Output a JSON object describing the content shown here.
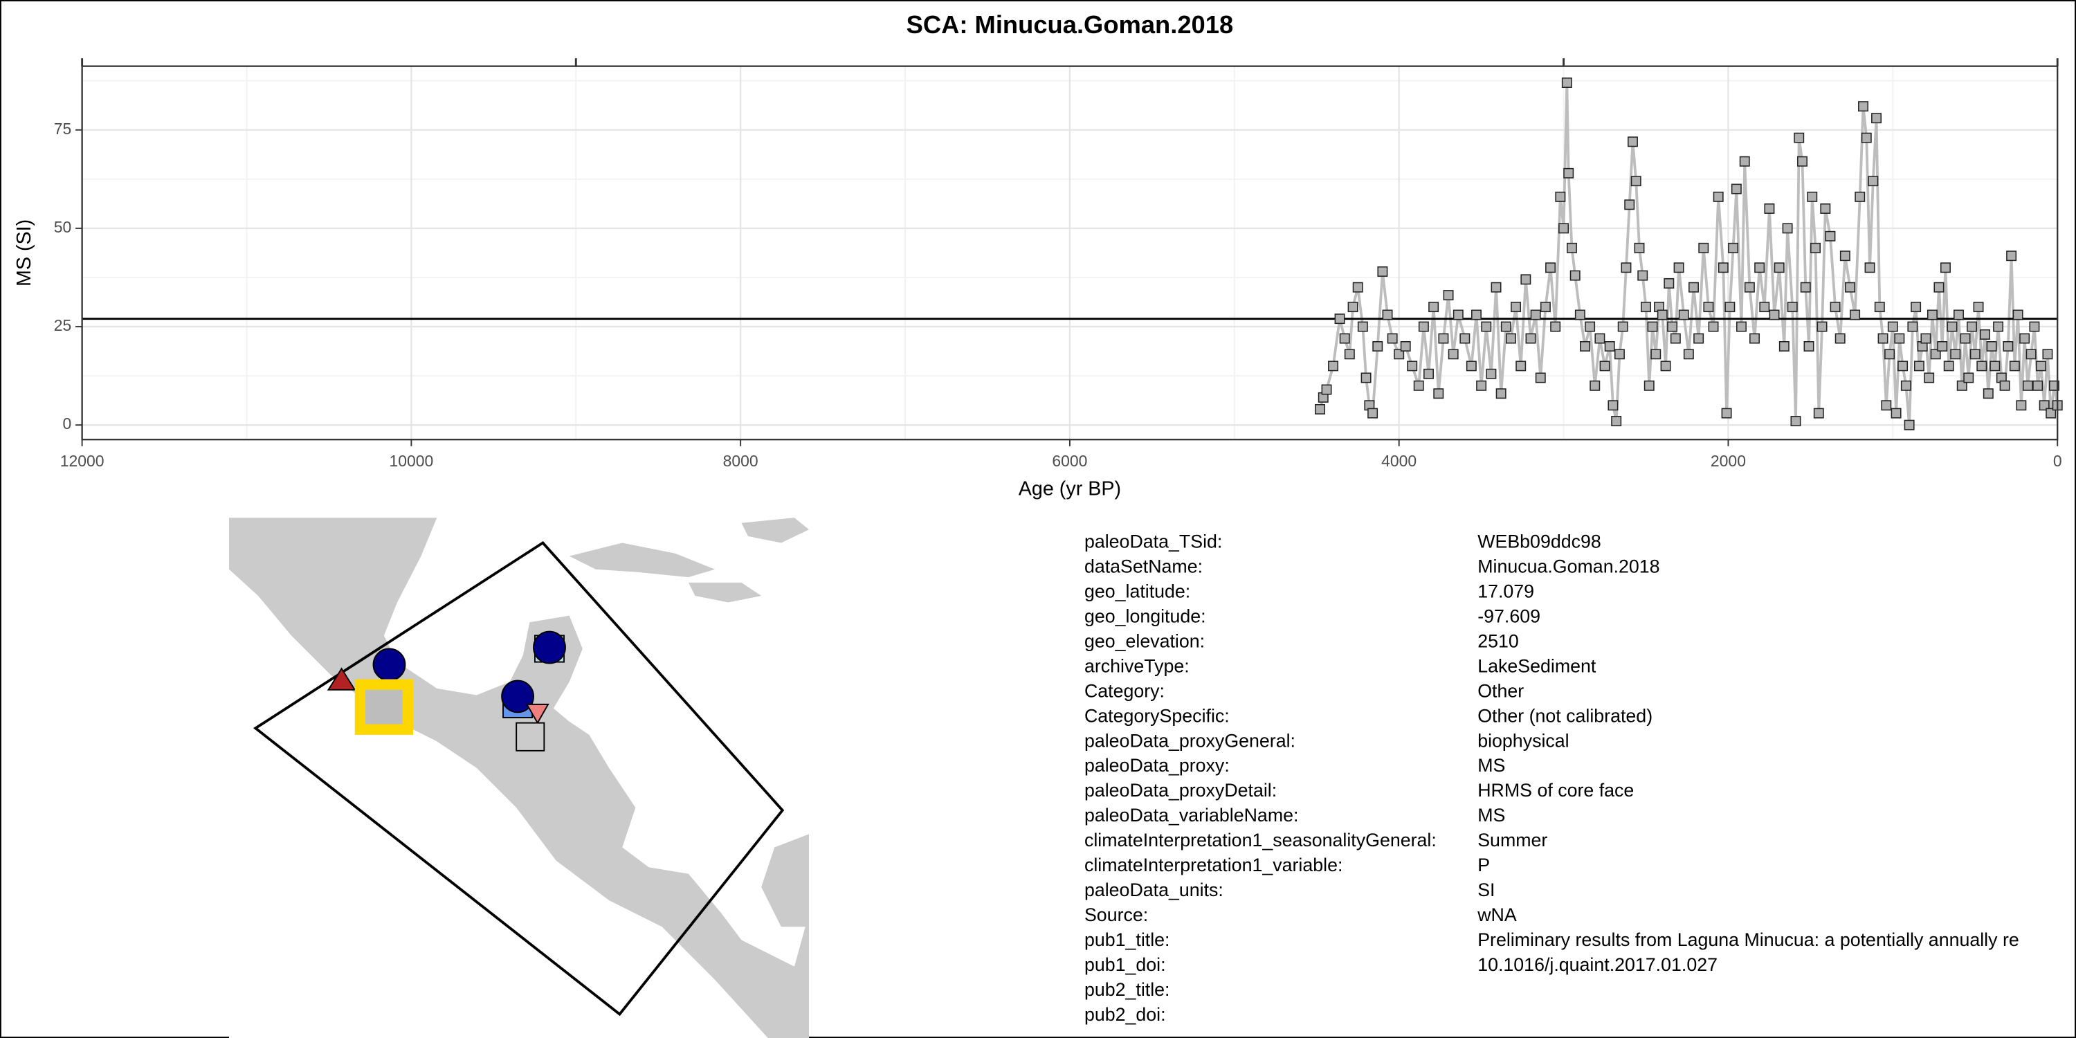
{
  "chart_data": {
    "type": "line",
    "title": "SCA: Minucua.Goman.2018",
    "x_label": "Age (yr BP)",
    "y_label": "MS (SI)",
    "x": [
      4480,
      4460,
      4440,
      4400,
      4360,
      4330,
      4300,
      4280,
      4250,
      4220,
      4200,
      4180,
      4160,
      4130,
      4100,
      4070,
      4040,
      4000,
      3960,
      3920,
      3880,
      3850,
      3820,
      3790,
      3760,
      3730,
      3700,
      3670,
      3640,
      3600,
      3560,
      3530,
      3500,
      3470,
      3440,
      3410,
      3380,
      3350,
      3320,
      3290,
      3260,
      3230,
      3200,
      3170,
      3140,
      3110,
      3080,
      3050,
      3020,
      3000,
      2980,
      2970,
      2950,
      2930,
      2900,
      2870,
      2840,
      2810,
      2780,
      2750,
      2720,
      2700,
      2680,
      2660,
      2640,
      2620,
      2600,
      2580,
      2560,
      2540,
      2520,
      2500,
      2480,
      2460,
      2440,
      2420,
      2400,
      2380,
      2360,
      2340,
      2320,
      2300,
      2270,
      2240,
      2210,
      2180,
      2150,
      2120,
      2090,
      2060,
      2030,
      2010,
      1990,
      1970,
      1950,
      1920,
      1900,
      1870,
      1840,
      1810,
      1780,
      1750,
      1720,
      1690,
      1660,
      1640,
      1610,
      1590,
      1570,
      1550,
      1530,
      1510,
      1490,
      1470,
      1450,
      1430,
      1410,
      1380,
      1350,
      1320,
      1290,
      1260,
      1230,
      1200,
      1180,
      1160,
      1140,
      1120,
      1100,
      1080,
      1060,
      1040,
      1020,
      1000,
      980,
      960,
      940,
      920,
      900,
      880,
      860,
      840,
      820,
      800,
      780,
      760,
      740,
      720,
      700,
      680,
      660,
      640,
      620,
      600,
      580,
      560,
      540,
      520,
      500,
      480,
      460,
      440,
      420,
      400,
      380,
      360,
      340,
      320,
      300,
      280,
      260,
      240,
      220,
      200,
      180,
      160,
      140,
      120,
      100,
      80,
      60,
      40,
      20,
      0
    ],
    "values": [
      4,
      7,
      9,
      15,
      27,
      22,
      18,
      30,
      35,
      25,
      12,
      5,
      3,
      20,
      39,
      28,
      22,
      18,
      20,
      15,
      10,
      25,
      13,
      30,
      8,
      22,
      33,
      18,
      28,
      22,
      15,
      28,
      10,
      25,
      13,
      35,
      8,
      25,
      22,
      30,
      15,
      37,
      22,
      28,
      12,
      30,
      40,
      25,
      58,
      50,
      87,
      64,
      45,
      38,
      28,
      20,
      25,
      10,
      22,
      15,
      20,
      5,
      1,
      18,
      25,
      40,
      56,
      72,
      62,
      45,
      38,
      30,
      10,
      25,
      18,
      30,
      28,
      15,
      36,
      25,
      22,
      40,
      28,
      18,
      35,
      22,
      45,
      30,
      25,
      58,
      40,
      3,
      30,
      45,
      60,
      25,
      67,
      35,
      22,
      40,
      30,
      55,
      28,
      40,
      20,
      50,
      30,
      1,
      73,
      67,
      35,
      20,
      58,
      45,
      3,
      25,
      55,
      48,
      30,
      22,
      43,
      35,
      28,
      58,
      81,
      73,
      40,
      62,
      78,
      30,
      22,
      5,
      18,
      25,
      3,
      22,
      15,
      10,
      0,
      25,
      30,
      15,
      20,
      22,
      12,
      28,
      18,
      35,
      20,
      40,
      15,
      25,
      18,
      28,
      10,
      22,
      12,
      25,
      18,
      30,
      15,
      23,
      8,
      20,
      15,
      25,
      12,
      10,
      20,
      43,
      15,
      28,
      5,
      22,
      10,
      18,
      25,
      10,
      15,
      5,
      18,
      3,
      10,
      5
    ],
    "color": "#bdbdbd",
    "marker_color": "#b0b0b0",
    "xlim": [
      12000,
      0
    ],
    "ylim": [
      -3.7,
      91.2
    ],
    "xticks": [
      12000,
      10000,
      8000,
      6000,
      4000,
      2000,
      0
    ],
    "yticks": [
      0,
      25,
      50,
      75
    ],
    "top_ticks": [
      12000,
      9000,
      3000,
      0
    ],
    "reference_line": 27,
    "grid": true
  },
  "metadata": {
    "rows": [
      [
        "paleoData_TSid:",
        "WEBb09ddc98"
      ],
      [
        "dataSetName:",
        "Minucua.Goman.2018"
      ],
      [
        "geo_latitude:",
        "17.079"
      ],
      [
        "geo_longitude:",
        "-97.609"
      ],
      [
        "geo_elevation:",
        "2510"
      ],
      [
        "archiveType:",
        "LakeSediment"
      ],
      [
        "Category:",
        "Other"
      ],
      [
        "CategorySpecific:",
        "Other (not calibrated)"
      ],
      [
        "paleoData_proxyGeneral:",
        "biophysical"
      ],
      [
        "paleoData_proxy:",
        "MS"
      ],
      [
        "paleoData_proxyDetail:",
        "HRMS of core face"
      ],
      [
        "paleoData_variableName:",
        "MS"
      ],
      [
        "climateInterpretation1_seasonalityGeneral:",
        "Summer"
      ],
      [
        "climateInterpretation1_variable:",
        "P"
      ],
      [
        "paleoData_units:",
        "SI"
      ],
      [
        "Source:",
        "wNA"
      ],
      [
        "pub1_title:",
        "Preliminary results from Laguna Minucua: a potentially annually re"
      ],
      [
        "pub1_doi:",
        "10.1016/j.quaint.2017.01.027"
      ],
      [
        "pub2_title:",
        ""
      ],
      [
        "pub2_doi:",
        ""
      ]
    ]
  }
}
